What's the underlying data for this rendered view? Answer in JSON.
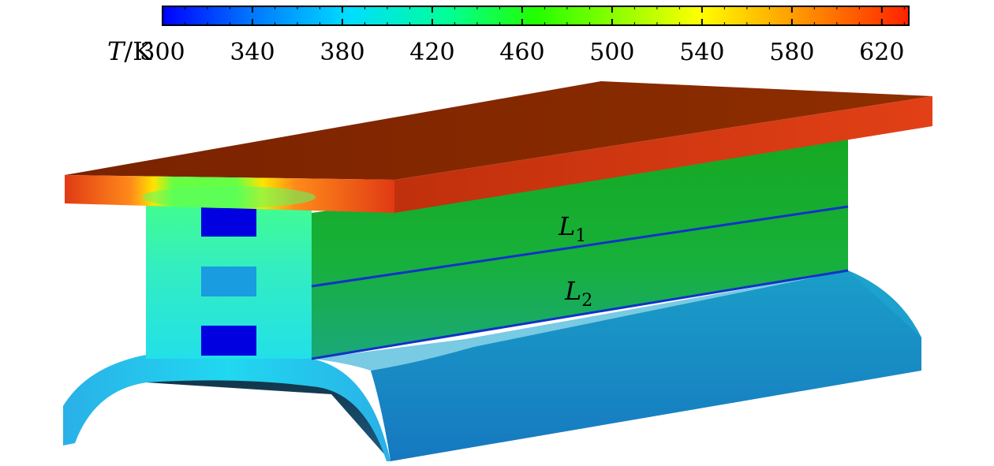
{
  "colorbar": {
    "variable": "T",
    "unit": "K",
    "ticks": [
      300,
      340,
      380,
      420,
      460,
      500,
      540,
      580,
      620
    ],
    "range": [
      300,
      632
    ],
    "colormap": [
      "#0000ff",
      "#00aaff",
      "#00ffee",
      "#00ff66",
      "#55ff00",
      "#ccff00",
      "#ffee00",
      "#ff8800",
      "#ff2200"
    ]
  },
  "model": {
    "top_flange_color": "#8a2a00",
    "top_flange_front_color": "#e8461a",
    "web_color": "#17b023",
    "web_face_color": "#3fe0a0",
    "bottom_color": "#1a8fc8",
    "bottom_front_color": "#25b8e6",
    "cooling_channel_color": "#0000e0",
    "middle_channel_color": "#1a9ce0",
    "line_color": "#1033c8"
  },
  "lines": [
    {
      "name": "L",
      "subscript": "1"
    },
    {
      "name": "L",
      "subscript": "2"
    }
  ]
}
